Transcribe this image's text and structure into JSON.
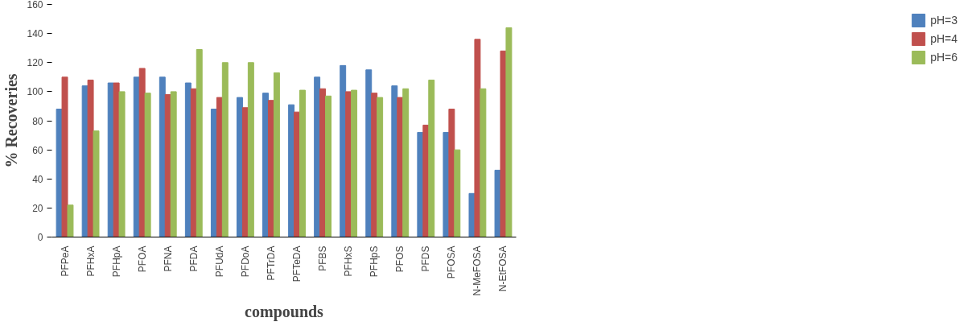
{
  "chart_data": {
    "type": "bar",
    "xlabel": "compounds",
    "ylabel": "% Recoveries",
    "categories": [
      "PFPeA",
      "PFHxA",
      "PFHpA",
      "PFOA",
      "PFNA",
      "PFDA",
      "PFUdA",
      "PFDoA",
      "PFTrDA",
      "PFTeDA",
      "PFBS",
      "PFHxS",
      "PFHpS",
      "PFOS",
      "PFDS",
      "PFOSA",
      "N-MeFOSA",
      "N-EtFOSA"
    ],
    "series": [
      {
        "name": "pH=3",
        "color": "#4f81bd",
        "values": [
          88,
          104,
          106,
          110,
          110,
          106,
          88,
          96,
          99,
          91,
          110,
          118,
          115,
          104,
          72,
          72,
          30,
          46
        ]
      },
      {
        "name": "pH=4",
        "color": "#c0504d",
        "values": [
          110,
          108,
          106,
          116,
          98,
          102,
          96,
          89,
          94,
          86,
          102,
          100,
          99,
          96,
          77,
          88,
          136,
          128
        ]
      },
      {
        "name": "pH=6",
        "color": "#9bbb59",
        "values": [
          22,
          73,
          100,
          99,
          100,
          129,
          120,
          120,
          113,
          101,
          97,
          101,
          96,
          102,
          108,
          60,
          102,
          144
        ]
      }
    ],
    "ylim": [
      0,
      160
    ],
    "yticks": [
      0,
      20,
      40,
      60,
      80,
      100,
      120,
      140,
      160
    ],
    "grid": false,
    "legend": "right"
  }
}
